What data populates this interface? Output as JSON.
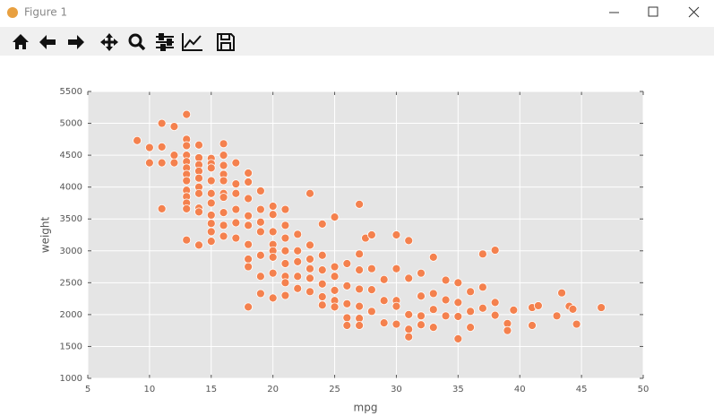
{
  "window": {
    "title": "Figure 1"
  },
  "chart_data": {
    "type": "scatter",
    "xlabel": "mpg",
    "ylabel": "weight",
    "xlim": [
      5,
      50
    ],
    "ylim": [
      1000,
      5500
    ],
    "xticks": [
      5,
      10,
      15,
      20,
      25,
      30,
      35,
      40,
      45,
      50
    ],
    "yticks": [
      1000,
      1500,
      2000,
      2500,
      3000,
      3500,
      4000,
      4500,
      5000,
      5500
    ],
    "grid": true,
    "color": "#f4814e",
    "x": [
      9,
      10,
      10,
      11,
      11,
      11,
      11,
      12,
      12,
      12,
      13,
      13,
      13,
      13,
      13,
      13,
      13,
      13,
      13,
      13,
      13,
      13,
      13,
      14,
      14,
      14,
      14,
      14,
      14,
      14,
      14,
      14,
      14,
      15,
      15,
      15,
      15,
      15,
      15,
      15,
      15,
      15,
      15,
      16,
      16,
      16,
      16,
      16,
      16,
      16,
      16,
      16,
      16,
      17,
      17,
      17,
      17,
      17,
      17,
      18,
      18,
      18,
      18,
      18,
      18,
      18,
      18,
      18,
      19,
      19,
      19,
      19,
      19,
      19,
      19,
      20,
      20,
      20,
      20,
      20,
      20,
      20,
      20,
      21,
      21,
      21,
      21,
      21,
      21,
      21,
      21,
      22,
      22,
      22,
      22,
      22,
      23,
      23,
      23,
      23,
      23,
      23,
      24,
      24,
      24,
      24,
      24,
      24,
      25,
      25,
      25,
      25,
      25,
      25,
      26,
      26,
      26,
      26,
      26,
      27,
      27,
      27,
      27,
      27,
      27,
      27,
      27.5,
      28,
      28,
      28,
      28,
      29,
      29,
      29,
      30,
      30,
      30,
      30,
      30,
      31,
      31,
      31,
      31,
      31,
      32,
      32,
      32,
      32,
      33,
      33,
      33,
      33,
      34,
      34,
      34,
      35,
      35,
      35,
      35,
      36,
      36,
      36,
      37,
      37,
      37,
      38,
      38,
      38,
      39,
      39,
      39.5,
      41,
      41,
      41.5,
      43,
      43.4,
      44,
      44.3,
      44.6,
      46.6
    ],
    "y": [
      4730,
      4620,
      4380,
      5000,
      4630,
      4380,
      3660,
      4950,
      4500,
      4380,
      5140,
      4750,
      4650,
      4500,
      4400,
      4300,
      4200,
      4100,
      3950,
      3850,
      3750,
      3660,
      3170,
      4660,
      4460,
      4350,
      4250,
      4140,
      4000,
      3900,
      3670,
      3610,
      3090,
      4450,
      4370,
      4300,
      4100,
      3900,
      3750,
      3560,
      3430,
      3300,
      3150,
      4680,
      4500,
      4340,
      4200,
      4100,
      3900,
      3840,
      3600,
      3400,
      3230,
      4380,
      4050,
      3900,
      3650,
      3440,
      3200,
      4220,
      4080,
      3820,
      3550,
      3400,
      3100,
      2870,
      2750,
      2120,
      3940,
      3650,
      3450,
      3300,
      2930,
      2600,
      2330,
      3700,
      3570,
      3300,
      3100,
      3000,
      2900,
      2650,
      2260,
      3650,
      3400,
      3200,
      3000,
      2800,
      2600,
      2500,
      2300,
      3260,
      3000,
      2830,
      2600,
      2410,
      3900,
      3090,
      2870,
      2720,
      2570,
      2360,
      3420,
      2930,
      2700,
      2480,
      2280,
      2150,
      3530,
      2750,
      2600,
      2380,
      2220,
      2120,
      2800,
      2450,
      2170,
      1950,
      1830,
      3730,
      2950,
      2700,
      2400,
      2130,
      1940,
      1830,
      3200,
      3250,
      2720,
      2390,
      2050,
      2550,
      2220,
      1870,
      3250,
      2720,
      2220,
      2130,
      1850,
      3160,
      2570,
      2000,
      1770,
      1650,
      2650,
      2290,
      1980,
      1840,
      2900,
      2330,
      2080,
      1800,
      2540,
      2230,
      1980,
      2500,
      2190,
      1970,
      1620,
      2360,
      2050,
      1800,
      2950,
      2430,
      2100,
      3010,
      2190,
      1990,
      1860,
      1750,
      2070,
      2110,
      1830,
      2140,
      1980,
      2340,
      2130,
      2085,
      1850,
      2110
    ]
  }
}
